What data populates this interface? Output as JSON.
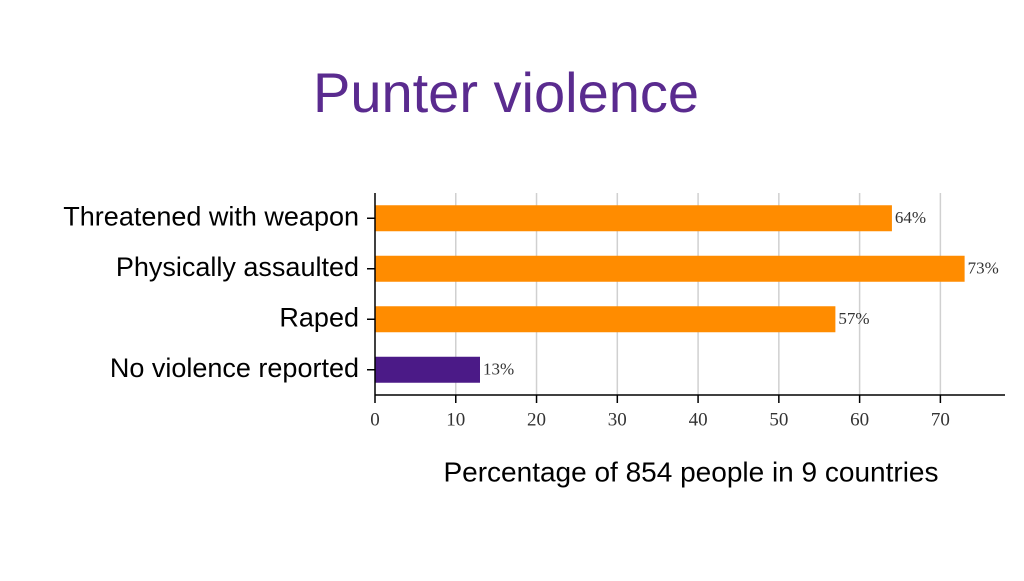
{
  "chart_data": {
    "type": "bar",
    "title": "Punter violence",
    "title_color": "#5a2b8f",
    "categories": [
      "Threatened with weapon",
      "Physically assaulted",
      "Raped",
      "No violence reported"
    ],
    "values": [
      64,
      73,
      57,
      13
    ],
    "value_labels": [
      "64%",
      "73%",
      "57%",
      "13%"
    ],
    "colors": [
      "#ff8c00",
      "#ff8c00",
      "#ff8c00",
      "#4b1a87"
    ],
    "xlabel": "Percentage of 854 people in 9 countries",
    "xlim": [
      0,
      78
    ],
    "xticks": [
      0,
      10,
      20,
      30,
      40,
      50,
      60,
      70
    ],
    "grid": true
  }
}
